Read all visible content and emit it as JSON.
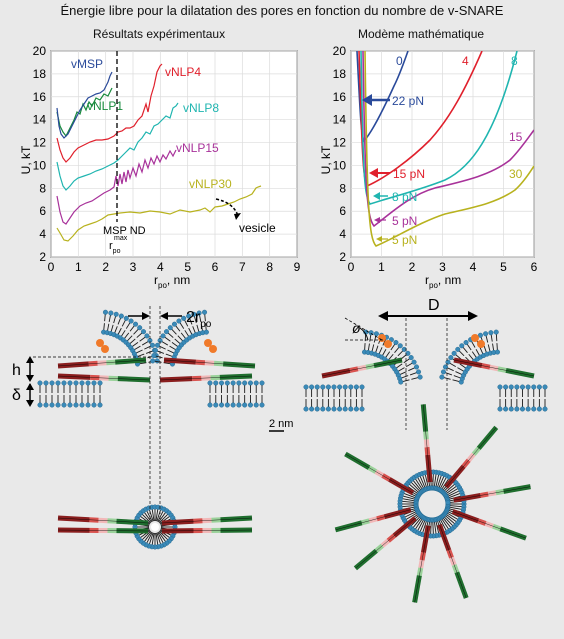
{
  "title": "Énergie libre pour la dilatation des pores en fonction du nombre de v-SNARE",
  "left_panel": {
    "subtitle": "Résultats expérimentaux",
    "ylabel": "U, kT",
    "xlabel_main": "r",
    "xlabel_sub": "po",
    "xlabel_unit": ", nm",
    "xticks": [
      "0",
      "1",
      "2",
      "3",
      "4",
      "5",
      "6",
      "7",
      "8",
      "9"
    ],
    "yticks": [
      "2",
      "4",
      "6",
      "8",
      "10",
      "12",
      "14",
      "16",
      "18",
      "20"
    ],
    "annotation_msp": "MSP ND",
    "annotation_rmax_main": "r",
    "annotation_rmax_sub": "po",
    "annotation_rmax_sup": "max",
    "annotation_vesicle": "vesicle",
    "series_labels": [
      "vMSP",
      "vNLP1",
      "vNLP4",
      "vNLP8",
      "vNLP15",
      "vNLP30"
    ],
    "colors": [
      "#2a4a9a",
      "#178a3c",
      "#e0202c",
      "#1fb5b0",
      "#a8329a",
      "#b8b21e"
    ]
  },
  "right_panel": {
    "subtitle": "Modème mathématique",
    "ylabel": "U, kT",
    "xlabel_main": "r",
    "xlabel_sub": "po",
    "xlabel_unit": ", nm",
    "xticks": [
      "0",
      "1",
      "2",
      "3",
      "4",
      "5",
      "6"
    ],
    "yticks": [
      "2",
      "4",
      "6",
      "8",
      "10",
      "12",
      "14",
      "16",
      "18",
      "20"
    ],
    "curve_labels": [
      "0",
      "4",
      "8",
      "15",
      "30"
    ],
    "force_labels": [
      "22 pN",
      "15 pN",
      "8 pN",
      "5 pN",
      "5 pN"
    ],
    "colors": [
      "#2a4a9a",
      "#e0202c",
      "#1fb5b0",
      "#a8329a",
      "#b8b21e"
    ]
  },
  "diagram": {
    "label_2r_main": "2r",
    "label_2r_sub": "po",
    "label_h": "h",
    "label_delta": "δ",
    "label_D": "D",
    "label_phi": "ø",
    "scale_bar": "2 nm"
  }
}
